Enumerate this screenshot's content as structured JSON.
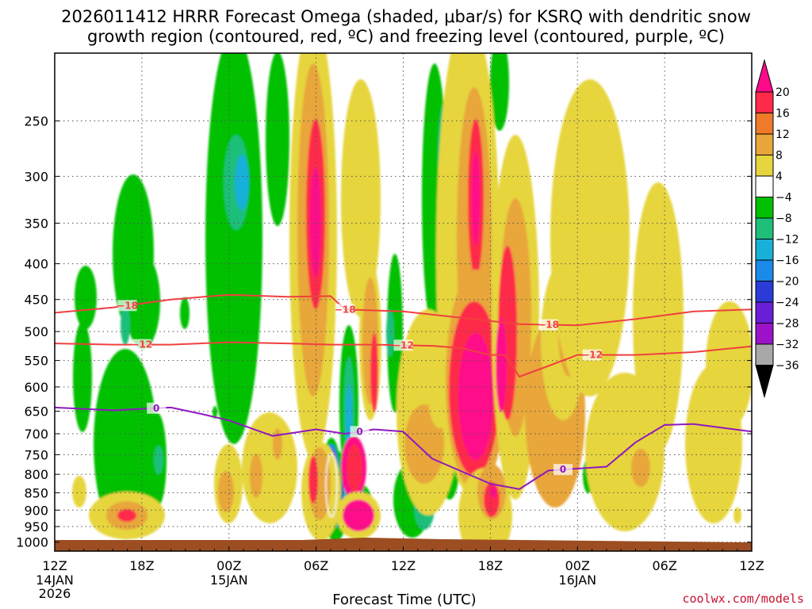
{
  "title_line1": "2026011412 HRRR Forecast Omega (shaded, μbar/s) for KSRQ with dendritic snow",
  "title_line2": "growth region (contoured, red, ºC) and freezing level (contoured, purple, ºC)",
  "credit": "coolwx.com/models",
  "chart_data": {
    "type": "heatmap",
    "title": "2026011412 HRRR Forecast Omega (shaded, μbar/s) for KSRQ with dendritic snow growth region (contoured, red, ºC) and freezing level (contoured, purple, ºC)",
    "xlabel": "Forecast Time (UTC)",
    "ylabel": "",
    "xlim_hours": [
      0,
      48
    ],
    "x_ticks": [
      {
        "hour": 0,
        "label": "12Z",
        "sub": [
          "14JAN",
          "2026"
        ]
      },
      {
        "hour": 6,
        "label": "18Z",
        "sub": []
      },
      {
        "hour": 12,
        "label": "00Z",
        "sub": [
          "15JAN"
        ]
      },
      {
        "hour": 18,
        "label": "06Z",
        "sub": []
      },
      {
        "hour": 24,
        "label": "12Z",
        "sub": []
      },
      {
        "hour": 30,
        "label": "18Z",
        "sub": []
      },
      {
        "hour": 36,
        "label": "00Z",
        "sub": [
          "16JAN"
        ]
      },
      {
        "hour": 42,
        "label": "06Z",
        "sub": []
      },
      {
        "hour": 48,
        "label": "12Z",
        "sub": []
      }
    ],
    "pressure_levels": [
      250,
      300,
      350,
      400,
      450,
      500,
      550,
      600,
      650,
      700,
      750,
      800,
      850,
      900,
      950,
      1000
    ],
    "grid": true,
    "colorbar": {
      "labels": [
        "20",
        "16",
        "12",
        "8",
        "4",
        "−4",
        "−8",
        "−12",
        "−16",
        "−20",
        "−24",
        "−28",
        "−32",
        "−36"
      ],
      "bins": [
        {
          "range": "16 to 20",
          "color": "#ff2a4a"
        },
        {
          "range": "12 to 16",
          "color": "#ef7a2a"
        },
        {
          "range": "8 to 12",
          "color": "#e8a63a"
        },
        {
          "range": "4 to 8",
          "color": "#e6d53e"
        },
        {
          "range": "-4 to 4",
          "color": "#ffffff"
        },
        {
          "range": "-8 to -4",
          "color": "#00c000"
        },
        {
          "range": "-12 to -8",
          "color": "#1fbf7a"
        },
        {
          "range": "-16 to -12",
          "color": "#19b0d8"
        },
        {
          "range": "-20 to -16",
          "color": "#1a8ae8"
        },
        {
          "range": "-24 to -20",
          "color": "#2a3bd8"
        },
        {
          "range": "-28 to -24",
          "color": "#6a1ed8"
        },
        {
          "range": "-32 to -28",
          "color": "#9b12c8"
        },
        {
          "range": "-36 to -32",
          "color": "#a8a8a8"
        }
      ],
      "top_arrow_color": "#ff0a8a",
      "bottom_arrow_color": "#000000"
    },
    "series": [
      {
        "name": "-18 ºC",
        "color": "#f04040",
        "label": "−18",
        "hours": [
          0,
          4,
          8,
          12,
          16,
          19,
          20,
          24,
          28,
          32,
          36,
          40,
          44,
          48
        ],
        "pressure": [
          470,
          462,
          450,
          443,
          446,
          445,
          465,
          468,
          478,
          488,
          490,
          480,
          468,
          465
        ]
      },
      {
        "name": "-12 ºC",
        "color": "#f04040",
        "label": "−12",
        "hours": [
          0,
          4,
          8,
          12,
          16,
          19,
          22,
          26,
          28,
          30,
          31,
          32,
          34,
          36,
          40,
          44,
          48
        ],
        "pressure": [
          520,
          522,
          522,
          518,
          520,
          522,
          522,
          524,
          528,
          540,
          540,
          580,
          560,
          540,
          540,
          535,
          525
        ]
      },
      {
        "name": "0 ºC freezing level",
        "color": "#9018c0",
        "label": "0",
        "hours": [
          0,
          4,
          8,
          10,
          12,
          15,
          18,
          20,
          22,
          24,
          26,
          30,
          32,
          34,
          38,
          40,
          42,
          44,
          48
        ],
        "pressure": [
          642,
          648,
          642,
          655,
          670,
          705,
          690,
          700,
          690,
          695,
          760,
          825,
          840,
          790,
          780,
          720,
          680,
          678,
          695
        ]
      }
    ]
  }
}
